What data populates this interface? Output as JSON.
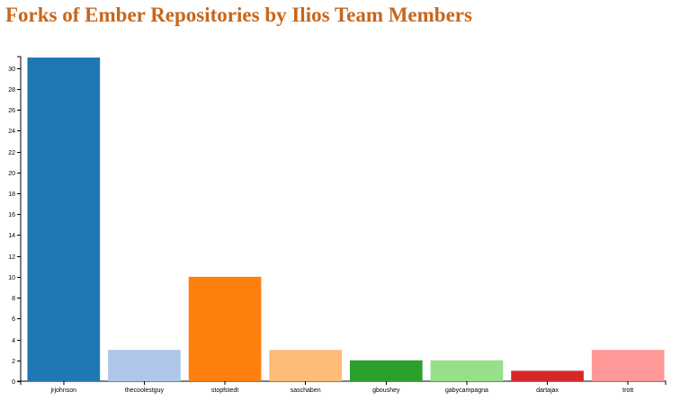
{
  "title": "Forks of Ember Repositories by Ilios Team Members",
  "chart_data": {
    "type": "bar",
    "title": "Forks of Ember Repositories by Ilios Team Members",
    "xlabel": "",
    "ylabel": "",
    "categories": [
      "jrjohnson",
      "thecoolestguy",
      "stopfstedt",
      "saschaben",
      "gboushey",
      "gabycampagna",
      "dartajax",
      "trott"
    ],
    "values": [
      31,
      3,
      10,
      3,
      2,
      2,
      1,
      3
    ],
    "colors": [
      "#1f77b4",
      "#aec7e8",
      "#ff7f0e",
      "#ffbb78",
      "#2ca02c",
      "#98df8a",
      "#d62728",
      "#ff9896"
    ],
    "ylim": [
      0,
      31
    ],
    "yticks": [
      0,
      2,
      4,
      6,
      8,
      10,
      12,
      14,
      16,
      18,
      20,
      22,
      24,
      26,
      28,
      30
    ],
    "grid": false,
    "legend": "none"
  }
}
